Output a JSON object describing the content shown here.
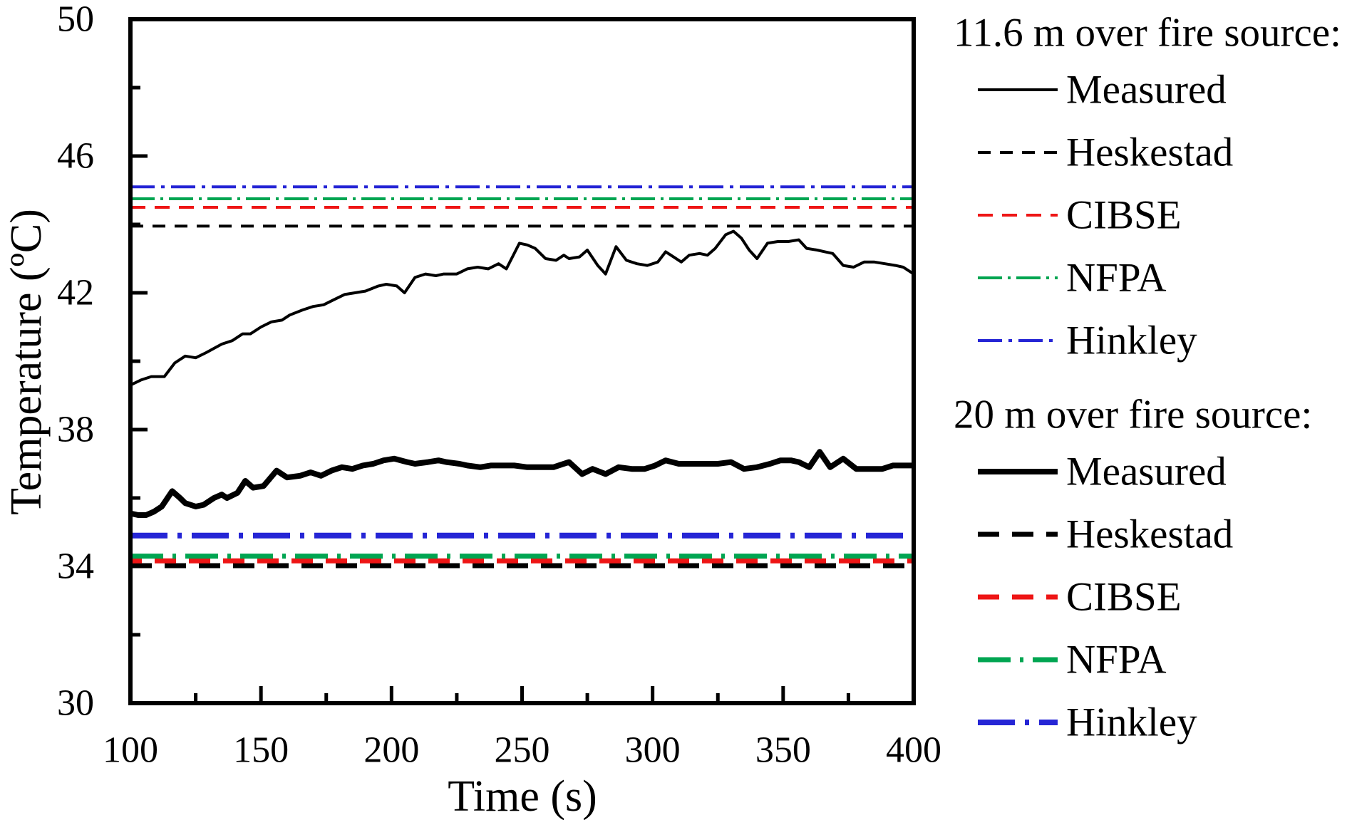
{
  "figure": {
    "background": "#ffffff",
    "x_axis": {
      "title": "Time (s)",
      "major_tick_values": [
        100,
        150,
        200,
        250,
        300,
        350,
        400
      ],
      "major_tick_labels": [
        "100",
        "150",
        "200",
        "250",
        "300",
        "350",
        "400"
      ],
      "minor_tick_values": [
        125,
        175,
        225,
        275,
        325,
        375
      ]
    },
    "y_axis": {
      "title": "Temperature (ºC)",
      "major_tick_values": [
        30,
        34,
        38,
        42,
        46,
        50
      ],
      "major_tick_labels": [
        "30",
        "34",
        "38",
        "42",
        "46",
        "50"
      ],
      "minor_tick_values": [
        32,
        36,
        40,
        44,
        48
      ]
    },
    "legend": {
      "groups": [
        {
          "header": "11.6 m over fire source:",
          "items": [
            {
              "label": "Measured",
              "series": "m11"
            },
            {
              "label": "Heskestad",
              "series": "hesk11"
            },
            {
              "label": "CIBSE",
              "series": "cibse11"
            },
            {
              "label": "NFPA",
              "series": "nfpa11"
            },
            {
              "label": "Hinkley",
              "series": "hink11"
            }
          ]
        },
        {
          "header": "20 m over fire source:",
          "items": [
            {
              "label": "Measured",
              "series": "m20"
            },
            {
              "label": "Heskestad",
              "series": "hesk20"
            },
            {
              "label": "CIBSE",
              "series": "cibse20"
            },
            {
              "label": "NFPA",
              "series": "nfpa20"
            },
            {
              "label": "Hinkley",
              "series": "hink20"
            }
          ]
        }
      ]
    }
  },
  "chart_data": {
    "type": "line",
    "title": "",
    "xlabel": "Time (s)",
    "ylabel": "Temperature (ºC)",
    "xlim": [
      100,
      400
    ],
    "ylim": [
      30,
      50
    ],
    "grid": false,
    "legend_position": "right",
    "series": [
      {
        "id": "hesk11",
        "name": "Heskestad (11.6 m over fire source)",
        "color": "#000000",
        "width": 4,
        "dash": [
          18,
          13
        ],
        "constant": 43.95
      },
      {
        "id": "cibse11",
        "name": "CIBSE (11.6 m over fire source)",
        "color": "#ee1515",
        "width": 4,
        "dash": [
          21,
          13
        ],
        "constant": 44.5
      },
      {
        "id": "nfpa11",
        "name": "NFPA (11.6 m over fire source)",
        "color": "#00a551",
        "width": 4,
        "dash": [
          34,
          8,
          4,
          8
        ],
        "constant": 44.75
      },
      {
        "id": "hink11",
        "name": "Hinkley (11.6 m over fire source)",
        "color": "#2525d5",
        "width": 4,
        "dash": [
          34,
          9,
          5,
          9
        ],
        "constant": 45.1
      },
      {
        "id": "m11",
        "name": "Measured (11.6 m over fire source)",
        "color": "#000000",
        "width": 4,
        "dash": null,
        "points": [
          [
            100,
            39.3
          ],
          [
            104,
            39.45
          ],
          [
            108,
            39.55
          ],
          [
            113,
            39.55
          ],
          [
            117,
            39.95
          ],
          [
            121,
            40.15
          ],
          [
            125,
            40.1
          ],
          [
            129,
            40.25
          ],
          [
            135,
            40.5
          ],
          [
            139,
            40.6
          ],
          [
            143,
            40.8
          ],
          [
            146,
            40.8
          ],
          [
            150,
            41.0
          ],
          [
            154,
            41.15
          ],
          [
            158,
            41.2
          ],
          [
            161,
            41.35
          ],
          [
            166,
            41.5
          ],
          [
            170,
            41.6
          ],
          [
            174,
            41.65
          ],
          [
            178,
            41.8
          ],
          [
            182,
            41.95
          ],
          [
            186,
            42.0
          ],
          [
            190,
            42.05
          ],
          [
            195,
            42.2
          ],
          [
            198,
            42.25
          ],
          [
            202,
            42.2
          ],
          [
            205,
            42.0
          ],
          [
            209,
            42.45
          ],
          [
            213,
            42.55
          ],
          [
            217,
            42.5
          ],
          [
            220,
            42.55
          ],
          [
            225,
            42.55
          ],
          [
            229,
            42.7
          ],
          [
            233,
            42.75
          ],
          [
            237,
            42.7
          ],
          [
            241,
            42.85
          ],
          [
            244,
            42.7
          ],
          [
            249,
            43.45
          ],
          [
            252,
            43.4
          ],
          [
            255,
            43.3
          ],
          [
            259,
            43.0
          ],
          [
            263,
            42.95
          ],
          [
            266,
            43.1
          ],
          [
            268,
            43.0
          ],
          [
            272,
            43.05
          ],
          [
            275,
            43.25
          ],
          [
            279,
            42.8
          ],
          [
            282,
            42.55
          ],
          [
            286,
            43.35
          ],
          [
            290,
            42.95
          ],
          [
            294,
            42.85
          ],
          [
            298,
            42.8
          ],
          [
            302,
            42.9
          ],
          [
            305,
            43.2
          ],
          [
            308,
            43.05
          ],
          [
            311,
            42.9
          ],
          [
            314,
            43.1
          ],
          [
            318,
            43.15
          ],
          [
            321,
            43.1
          ],
          [
            324,
            43.3
          ],
          [
            328,
            43.7
          ],
          [
            331,
            43.8
          ],
          [
            334,
            43.6
          ],
          [
            337,
            43.25
          ],
          [
            340,
            43.0
          ],
          [
            344,
            43.45
          ],
          [
            348,
            43.5
          ],
          [
            352,
            43.5
          ],
          [
            356,
            43.55
          ],
          [
            359,
            43.3
          ],
          [
            363,
            43.25
          ],
          [
            366,
            43.2
          ],
          [
            369,
            43.15
          ],
          [
            373,
            42.8
          ],
          [
            377,
            42.75
          ],
          [
            381,
            42.9
          ],
          [
            385,
            42.9
          ],
          [
            389,
            42.85
          ],
          [
            393,
            42.8
          ],
          [
            396,
            42.75
          ],
          [
            400,
            42.55
          ]
        ]
      },
      {
        "id": "hesk20",
        "name": "Heskestad (20 m over fire source)",
        "color": "#000000",
        "width": 7,
        "dash": [
          30,
          18
        ],
        "constant": 34.02
      },
      {
        "id": "cibse20",
        "name": "CIBSE (20 m over fire source)",
        "color": "#ee1515",
        "width": 7,
        "dash": [
          30,
          18
        ],
        "dash_offset": 14,
        "constant": 34.16
      },
      {
        "id": "nfpa20",
        "name": "NFPA (20 m over fire source)",
        "color": "#00a551",
        "width": 7,
        "dash": [
          46,
          13,
          5,
          13
        ],
        "constant": 34.3
      },
      {
        "id": "hink20",
        "name": "Hinkley (20 m over fire source)",
        "color": "#2525d5",
        "width": 8,
        "dash": [
          52,
          14,
          6,
          14
        ],
        "constant": 34.9
      },
      {
        "id": "m20",
        "name": "Measured (20 m over fire source)",
        "color": "#000000",
        "width": 8,
        "dash": null,
        "points": [
          [
            100,
            35.55
          ],
          [
            103,
            35.5
          ],
          [
            106,
            35.5
          ],
          [
            109,
            35.6
          ],
          [
            112,
            35.75
          ],
          [
            116,
            36.2
          ],
          [
            119,
            36.0
          ],
          [
            121,
            35.85
          ],
          [
            125,
            35.75
          ],
          [
            128,
            35.8
          ],
          [
            132,
            36.0
          ],
          [
            135,
            36.1
          ],
          [
            137,
            36.0
          ],
          [
            141,
            36.15
          ],
          [
            144,
            36.5
          ],
          [
            147,
            36.3
          ],
          [
            151,
            36.35
          ],
          [
            156,
            36.8
          ],
          [
            160,
            36.6
          ],
          [
            165,
            36.65
          ],
          [
            169,
            36.75
          ],
          [
            173,
            36.65
          ],
          [
            177,
            36.8
          ],
          [
            181,
            36.9
          ],
          [
            185,
            36.85
          ],
          [
            189,
            36.95
          ],
          [
            193,
            37.0
          ],
          [
            197,
            37.1
          ],
          [
            201,
            37.15
          ],
          [
            206,
            37.05
          ],
          [
            209,
            37.0
          ],
          [
            214,
            37.05
          ],
          [
            218,
            37.1
          ],
          [
            221,
            37.05
          ],
          [
            226,
            37.0
          ],
          [
            229,
            36.95
          ],
          [
            234,
            36.9
          ],
          [
            238,
            36.95
          ],
          [
            241,
            36.95
          ],
          [
            247,
            36.95
          ],
          [
            252,
            36.9
          ],
          [
            257,
            36.9
          ],
          [
            262,
            36.9
          ],
          [
            268,
            37.05
          ],
          [
            273,
            36.7
          ],
          [
            277,
            36.85
          ],
          [
            282,
            36.7
          ],
          [
            287,
            36.9
          ],
          [
            292,
            36.85
          ],
          [
            297,
            36.85
          ],
          [
            301,
            36.95
          ],
          [
            305,
            37.1
          ],
          [
            310,
            37.0
          ],
          [
            315,
            37.0
          ],
          [
            320,
            37.0
          ],
          [
            325,
            37.0
          ],
          [
            330,
            37.05
          ],
          [
            335,
            36.85
          ],
          [
            340,
            36.9
          ],
          [
            345,
            37.0
          ],
          [
            349,
            37.1
          ],
          [
            353,
            37.1
          ],
          [
            356,
            37.05
          ],
          [
            360,
            36.9
          ],
          [
            364,
            37.35
          ],
          [
            368,
            36.9
          ],
          [
            373,
            37.15
          ],
          [
            378,
            36.85
          ],
          [
            383,
            36.85
          ],
          [
            388,
            36.85
          ],
          [
            392,
            36.95
          ],
          [
            396,
            36.95
          ],
          [
            400,
            36.95
          ]
        ]
      }
    ]
  }
}
